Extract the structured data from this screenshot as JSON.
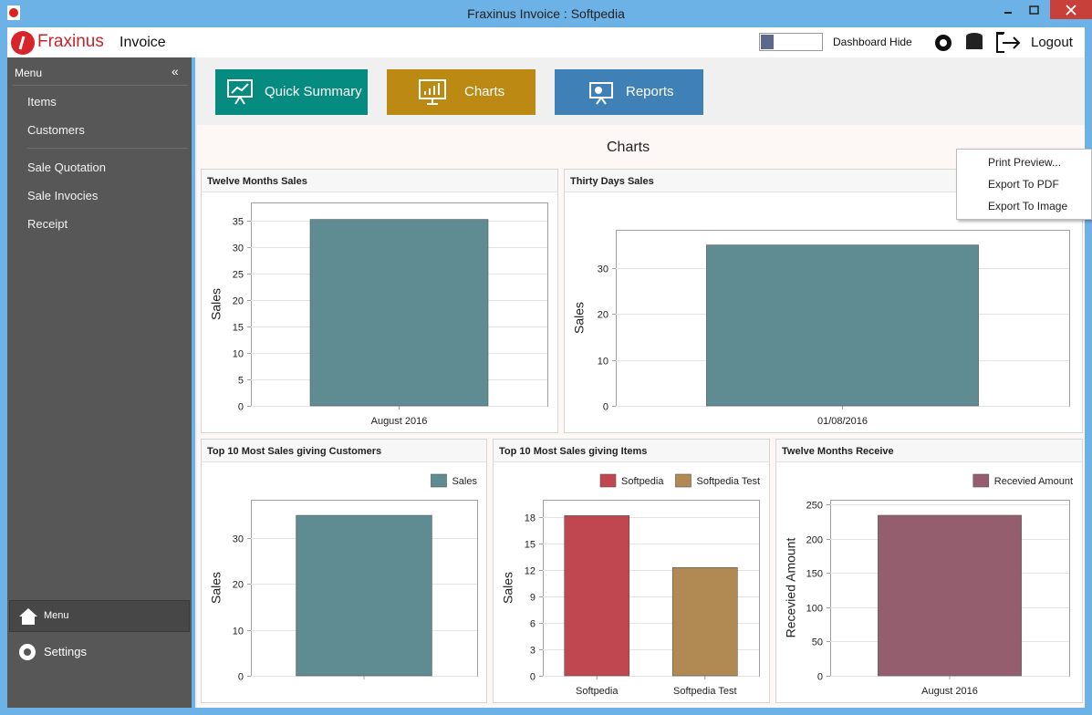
{
  "window": {
    "title": "Fraxinus Invoice : Softpedia"
  },
  "header": {
    "brand": "Fraxinus",
    "brand_suffix": "Invoice",
    "toggle_label": "Dashboard Hide",
    "logout": "Logout"
  },
  "sidebar": {
    "title": "Menu",
    "items": [
      "Items",
      "Customers",
      "Sale Quotation",
      "Sale Invocies",
      "Receipt"
    ],
    "bottom": [
      "Menu",
      "Settings"
    ]
  },
  "tabs": [
    "Quick Summary",
    "Charts",
    "Reports"
  ],
  "page_title": "Charts",
  "context_menu": [
    "Print Preview...",
    "Export To PDF",
    "Export To Image"
  ],
  "charts": [
    {
      "type": "bar",
      "title": "Twelve Months Sales",
      "y_label": "Sales",
      "categories": [
        "August 2016"
      ],
      "values": [
        35.2
      ],
      "color": "#5f8b93",
      "ylim": [
        0,
        38.4
      ],
      "yticks": [
        0,
        5,
        10,
        15,
        20,
        25,
        30,
        35
      ],
      "grid": true
    },
    {
      "type": "bar",
      "title": "Thirty Days Sales",
      "y_label": "Sales",
      "categories": [
        "01/08/2016"
      ],
      "values": [
        35
      ],
      "color": "#5f8b93",
      "ylim": [
        0,
        38.3
      ],
      "yticks": [
        0,
        10,
        20,
        30
      ],
      "grid": true
    },
    {
      "type": "bar",
      "title": "Top 10 Most Sales giving Customers",
      "y_label": "Sales",
      "categories": [
        null
      ],
      "series": [
        {
          "name": "Sales",
          "color": "#5f8b93",
          "values": [
            35
          ]
        }
      ],
      "ylim": [
        0,
        38.4
      ],
      "yticks": [
        0,
        10,
        20,
        30
      ],
      "grid": true,
      "legend": "top-right"
    },
    {
      "type": "bar",
      "title": "Top 10 Most Sales giving Items",
      "y_label": "Sales",
      "categories": [
        "Softpedia",
        "Softpedia Test"
      ],
      "series": [
        {
          "name": "Softpedia",
          "color": "#c0474f",
          "values": [
            18.2,
            null
          ]
        },
        {
          "name": "Softpedia Test",
          "color": "#b08a52",
          "values": [
            null,
            12.3
          ]
        }
      ],
      "ylim": [
        0,
        20
      ],
      "yticks": [
        0,
        3,
        6,
        9,
        12,
        15,
        18
      ],
      "grid": true,
      "legend": "top-right"
    },
    {
      "type": "bar",
      "title": "Twelve Months Receive",
      "y_label": "Recevied Amount",
      "categories": [
        "August 2016"
      ],
      "series": [
        {
          "name": "Recevied Amount",
          "color": "#955e6f",
          "values": [
            234
          ]
        }
      ],
      "ylim": [
        0,
        256.6
      ],
      "yticks": [
        0,
        50,
        100,
        150,
        200,
        250
      ],
      "grid": true,
      "legend": "top-right"
    }
  ]
}
